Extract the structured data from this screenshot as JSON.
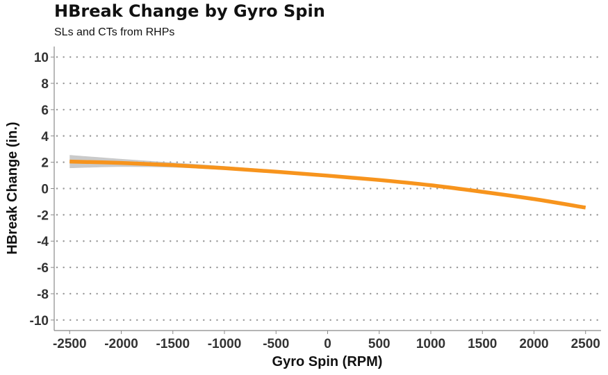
{
  "chart_data": {
    "type": "line",
    "title": "HBreak Change by Gyro Spin",
    "subtitle": "SLs and CTs from RHPs",
    "xlabel": "Gyro Spin (RPM)",
    "ylabel": "HBreak Change (in.)",
    "xlim": [
      -2650,
      2650
    ],
    "ylim": [
      -10.8,
      10.8
    ],
    "x_ticks": [
      -2500,
      -2000,
      -1500,
      -1000,
      -500,
      0,
      500,
      1000,
      1500,
      2000,
      2500
    ],
    "y_ticks": [
      10,
      8,
      6,
      4,
      2,
      0,
      -2,
      -4,
      -6,
      -8,
      -10
    ],
    "grid": "horizontal dotted",
    "legend": "none",
    "series": [
      {
        "x": [
          -2500,
          -2000,
          -1500,
          -1000,
          -500,
          0,
          500,
          1000,
          1500,
          2000,
          2500
        ],
        "y": [
          2.05,
          1.95,
          1.78,
          1.55,
          1.28,
          0.98,
          0.65,
          0.25,
          -0.25,
          -0.8,
          -1.45
        ],
        "ci_low": [
          1.55,
          1.65,
          1.6,
          1.42,
          1.18,
          0.9,
          0.58,
          0.2,
          -0.25,
          -0.8,
          -1.45
        ],
        "ci_high": [
          2.55,
          2.25,
          1.98,
          1.7,
          1.4,
          1.08,
          0.74,
          0.3,
          -0.25,
          -0.8,
          -1.45
        ]
      }
    ],
    "colors": {
      "line": "#F7941D",
      "band": "#BDBDBD",
      "grid": "#999999",
      "axis": "#888888"
    }
  }
}
